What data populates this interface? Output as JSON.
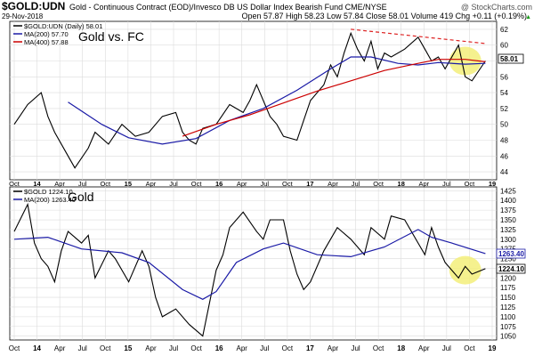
{
  "header": {
    "symbol": "$GOLD:UDN",
    "description": "Gold - Continuous Contract (EOD)/Invesco DB US Dollar Index Bearish Fund  CME/NYSE",
    "watermark": "@ StockCharts.com",
    "date": "29-Nov-2018",
    "ohlc": "Open 57.87  High 58.23  Low 57.84  Close 58.01  Volume 419  Chg +0.11 (+0.19%)",
    "chg_arrow": "▲"
  },
  "chart_data": [
    {
      "type": "line",
      "title": "Gold vs. FC",
      "legend": [
        {
          "label": "$GOLD:UDN (Daily) 58.01",
          "color": "#000000"
        },
        {
          "label": "MA(200) 57.70",
          "color": "#1a1aa6"
        },
        {
          "label": "MA(400) 57.88",
          "color": "#cc0000"
        }
      ],
      "legend_placement": "top-left",
      "last_value_label": "58.01",
      "ylim": [
        43,
        63
      ],
      "y_ticks": [
        44,
        46,
        48,
        50,
        52,
        54,
        56,
        58,
        60,
        62
      ],
      "grid": true,
      "x_tick_labels": [
        "Oct",
        "14",
        "Apr",
        "Jul",
        "Oct",
        "15",
        "Apr",
        "Jul",
        "Oct",
        "16",
        "Apr",
        "Jul",
        "Oct",
        "17",
        "Apr",
        "Jul",
        "Oct",
        "18",
        "Apr",
        "Jul",
        "Oct",
        "19"
      ],
      "series": [
        {
          "color": "#000000",
          "x": [
            0,
            2,
            4,
            5,
            6,
            8,
            9,
            11,
            12,
            14,
            16,
            18,
            20,
            22,
            24,
            25,
            26,
            27,
            28,
            30,
            32,
            34,
            35,
            36,
            38,
            39,
            40,
            42,
            43,
            44,
            46,
            47,
            48,
            49,
            50,
            51,
            52,
            53,
            54,
            55,
            56,
            58,
            60,
            61,
            62,
            63,
            64,
            66,
            67,
            68,
            70
          ],
          "y": [
            50,
            52.5,
            54,
            51,
            49,
            46,
            44.5,
            47,
            49,
            47.5,
            50,
            48.5,
            49,
            51,
            51.5,
            49,
            48,
            47.5,
            49.5,
            50,
            52.5,
            51.5,
            53,
            55,
            51,
            50,
            48.5,
            48,
            50.5,
            53,
            55,
            57.5,
            56,
            59,
            61.5,
            59.5,
            58,
            60.5,
            57,
            59,
            58.5,
            59.5,
            61,
            59.5,
            58,
            58.5,
            57,
            60,
            56,
            55.5,
            58
          ]
        },
        {
          "color": "#1a1aa6",
          "x": [
            8,
            13,
            17,
            22,
            27,
            32,
            37,
            42,
            47,
            50,
            53,
            57,
            60,
            63,
            67,
            70
          ],
          "y": [
            52.8,
            50,
            48.3,
            47.5,
            48.2,
            50.5,
            52,
            54.3,
            57,
            58.5,
            58.5,
            57.7,
            57.5,
            57.8,
            57.6,
            57.7
          ]
        },
        {
          "color": "#cc0000",
          "x": [
            25,
            30,
            35,
            40,
            45,
            50,
            55,
            60,
            63,
            67,
            70
          ],
          "y": [
            48.5,
            50,
            51.2,
            52.7,
            54.2,
            55.5,
            56.8,
            57.7,
            58.2,
            58.2,
            57.9
          ]
        },
        {
          "color": "#dd2222",
          "dashed": true,
          "x": [
            50,
            70
          ],
          "y": [
            62,
            60.2
          ]
        }
      ],
      "highlight_x": 67
    },
    {
      "type": "line",
      "title": "Gold",
      "legend": [
        {
          "label": "$GOLD 1224.10",
          "color": "#000000"
        },
        {
          "label": "MA(200) 1263.40",
          "color": "#1a1aa6"
        }
      ],
      "legend_placement": "top-left",
      "last_value_label": "1224.10",
      "ma_value_label": "1263.40",
      "ylim": [
        1040,
        1435
      ],
      "y_ticks": [
        1050,
        1075,
        1100,
        1125,
        1150,
        1175,
        1200,
        1225,
        1250,
        1275,
        1300,
        1325,
        1350,
        1375,
        1400,
        1425
      ],
      "grid": true,
      "x_tick_labels": [
        "Oct",
        "14",
        "Apr",
        "Jul",
        "Oct",
        "15",
        "Apr",
        "Jul",
        "Oct",
        "16",
        "Apr",
        "Jul",
        "Oct",
        "17",
        "Apr",
        "Jul",
        "Oct",
        "18",
        "Apr",
        "Jul",
        "Oct",
        "19"
      ],
      "series": [
        {
          "color": "#000000",
          "x": [
            0,
            2,
            3,
            4,
            5,
            6,
            7,
            8,
            10,
            11,
            12,
            14,
            15,
            17,
            19,
            20,
            21,
            22,
            24,
            26,
            28,
            30,
            31,
            32,
            34,
            36,
            37,
            38,
            40,
            41,
            42,
            43,
            44,
            46,
            48,
            50,
            52,
            53,
            55,
            56,
            58,
            60,
            61,
            62,
            63,
            64,
            66,
            67,
            68,
            70
          ],
          "y": [
            1320,
            1390,
            1290,
            1250,
            1230,
            1190,
            1270,
            1320,
            1290,
            1310,
            1200,
            1270,
            1250,
            1190,
            1270,
            1230,
            1150,
            1100,
            1120,
            1080,
            1050,
            1220,
            1260,
            1330,
            1370,
            1320,
            1300,
            1350,
            1350,
            1270,
            1210,
            1170,
            1190,
            1270,
            1330,
            1300,
            1260,
            1330,
            1300,
            1360,
            1350,
            1290,
            1260,
            1330,
            1280,
            1240,
            1200,
            1230,
            1210,
            1224
          ]
        },
        {
          "color": "#1a1aa6",
          "x": [
            0,
            5,
            10,
            16,
            20,
            25,
            28,
            30,
            33,
            37,
            40,
            45,
            50,
            55,
            60,
            62,
            65,
            70
          ],
          "y": [
            1300,
            1305,
            1275,
            1265,
            1240,
            1170,
            1145,
            1165,
            1240,
            1275,
            1290,
            1260,
            1255,
            1280,
            1325,
            1305,
            1290,
            1263
          ]
        }
      ],
      "highlight_x": 67
    }
  ]
}
